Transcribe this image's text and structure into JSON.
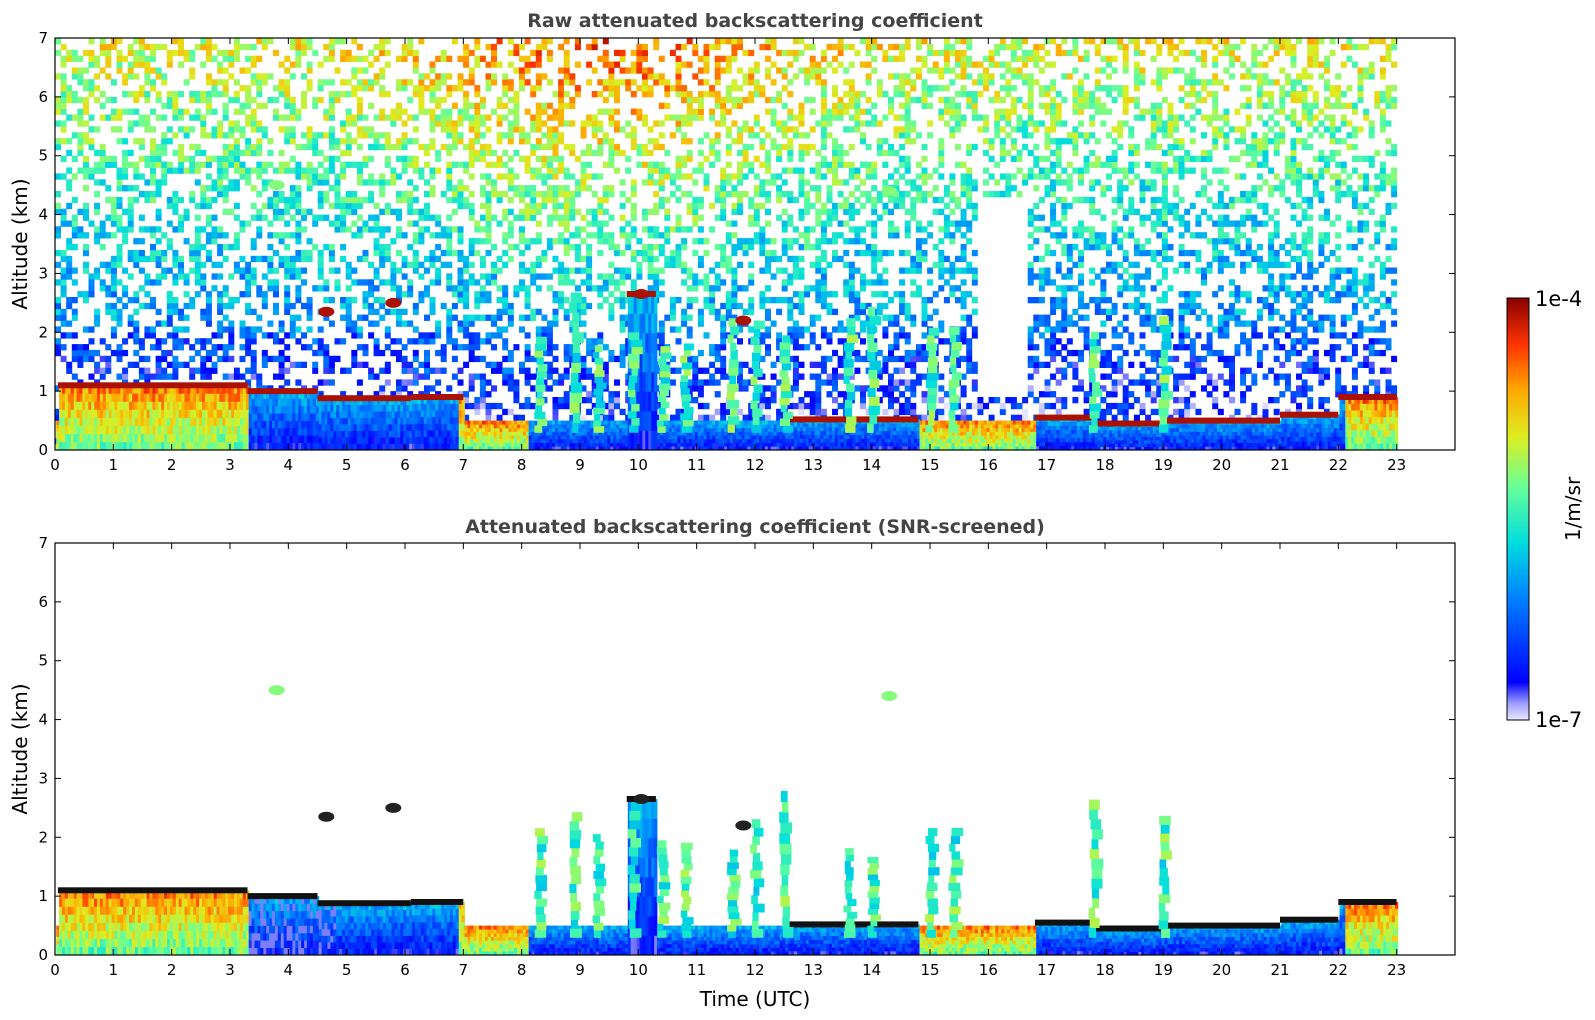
{
  "chart_data": [
    {
      "type": "heatmap",
      "title": "Raw attenuated backscattering coefficient",
      "xlabel": "",
      "ylabel": "Altitude (km)",
      "xlim": [
        0,
        24
      ],
      "ylim": [
        0,
        7
      ],
      "x_ticks": [
        "0",
        "1",
        "2",
        "3",
        "4",
        "5",
        "6",
        "7",
        "8",
        "9",
        "10",
        "11",
        "12",
        "13",
        "14",
        "15",
        "16",
        "17",
        "18",
        "19",
        "20",
        "21",
        "22",
        "23"
      ],
      "y_ticks": [
        "0",
        "1",
        "2",
        "3",
        "4",
        "5",
        "6",
        "7"
      ],
      "data_end_time": 23,
      "screened": false,
      "noise_fill": true,
      "cloud_base": [
        {
          "t0": 0.05,
          "t1": 3.3,
          "h": 1.1
        },
        {
          "t0": 3.3,
          "t1": 4.5,
          "h": 1.0
        },
        {
          "t0": 4.5,
          "t1": 6.1,
          "h": 0.88
        },
        {
          "t0": 6.1,
          "t1": 7.0,
          "h": 0.9
        },
        {
          "t0": 9.8,
          "t1": 10.3,
          "h": 2.65
        },
        {
          "t0": 12.5,
          "t1": 14.8,
          "h": 0.52
        },
        {
          "t0": 16.8,
          "t1": 17.8,
          "h": 0.55
        },
        {
          "t0": 17.8,
          "t1": 19.0,
          "h": 0.45
        },
        {
          "t0": 19.0,
          "t1": 21.0,
          "h": 0.5
        },
        {
          "t0": 21.0,
          "t1": 22.0,
          "h": 0.6
        },
        {
          "t0": 22.0,
          "t1": 23.0,
          "h": 0.9
        }
      ],
      "elevated_features": [
        {
          "t": 4.65,
          "h": 2.35
        },
        {
          "t": 5.8,
          "h": 2.5
        },
        {
          "t": 10.05,
          "h": 2.65
        },
        {
          "t": 14.3,
          "h": 4.4
        },
        {
          "t": 3.8,
          "h": 4.5
        },
        {
          "t": 11.8,
          "h": 2.2
        }
      ]
    },
    {
      "type": "heatmap",
      "title": "Attenuated backscattering coefficient (SNR-screened)",
      "xlabel": "Time (UTC)",
      "ylabel": "Altitude (km)",
      "xlim": [
        0,
        24
      ],
      "ylim": [
        0,
        7
      ],
      "x_ticks": [
        "0",
        "1",
        "2",
        "3",
        "4",
        "5",
        "6",
        "7",
        "8",
        "9",
        "10",
        "11",
        "12",
        "13",
        "14",
        "15",
        "16",
        "17",
        "18",
        "19",
        "20",
        "21",
        "22",
        "23"
      ],
      "y_ticks": [
        "0",
        "1",
        "2",
        "3",
        "4",
        "5",
        "6",
        "7"
      ],
      "data_end_time": 23,
      "screened": true,
      "noise_fill": false,
      "cloud_base": [
        {
          "t0": 0.05,
          "t1": 3.3,
          "h": 1.1
        },
        {
          "t0": 3.3,
          "t1": 4.5,
          "h": 1.0
        },
        {
          "t0": 4.5,
          "t1": 6.1,
          "h": 0.88
        },
        {
          "t0": 6.1,
          "t1": 7.0,
          "h": 0.9
        },
        {
          "t0": 9.8,
          "t1": 10.3,
          "h": 2.65
        },
        {
          "t0": 12.5,
          "t1": 14.8,
          "h": 0.52
        },
        {
          "t0": 16.8,
          "t1": 17.8,
          "h": 0.55
        },
        {
          "t0": 17.8,
          "t1": 19.0,
          "h": 0.45
        },
        {
          "t0": 19.0,
          "t1": 21.0,
          "h": 0.5
        },
        {
          "t0": 21.0,
          "t1": 22.0,
          "h": 0.6
        },
        {
          "t0": 22.0,
          "t1": 23.0,
          "h": 0.9
        }
      ],
      "elevated_features": [
        {
          "t": 4.65,
          "h": 2.35
        },
        {
          "t": 5.8,
          "h": 2.5
        },
        {
          "t": 10.05,
          "h": 2.65
        },
        {
          "t": 14.3,
          "h": 4.4
        },
        {
          "t": 3.8,
          "h": 4.5
        },
        {
          "t": 11.8,
          "h": 2.2
        }
      ]
    }
  ],
  "colorbar": {
    "label": "1/m/sr",
    "max_label": "1e-4",
    "min_label": "1e-7",
    "vmin": 1e-07,
    "vmax": 0.0001,
    "scale": "log",
    "colormap": "jet"
  }
}
